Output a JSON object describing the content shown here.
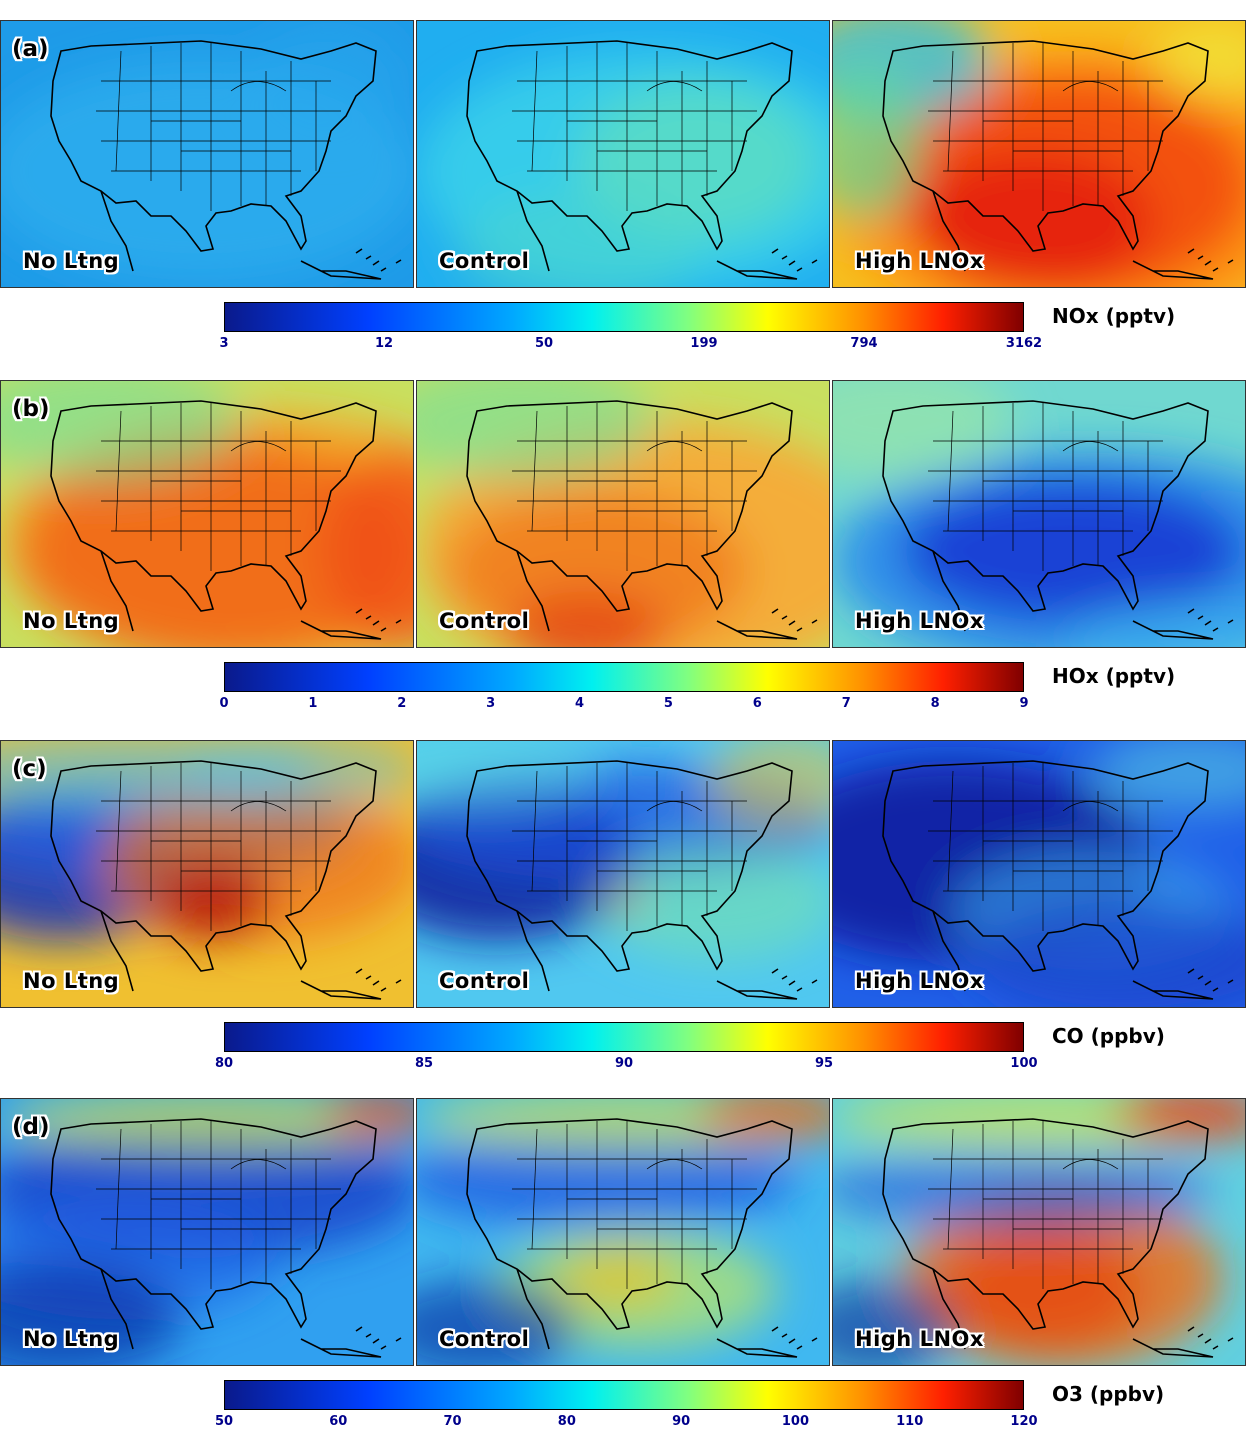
{
  "rows": [
    {
      "label": "(a)",
      "panels": [
        "No Ltng",
        "Control",
        "High LNOx"
      ],
      "colorbar": {
        "title": "NOx (pptv)",
        "ticks": [
          "3",
          "12",
          "50",
          "199",
          "794",
          "3162"
        ]
      }
    },
    {
      "label": "(b)",
      "panels": [
        "No Ltng",
        "Control",
        "High LNOx"
      ],
      "colorbar": {
        "title": "HOx (pptv)",
        "ticks": [
          "0",
          "1",
          "2",
          "3",
          "4",
          "5",
          "6",
          "7",
          "8",
          "9"
        ]
      }
    },
    {
      "label": "(c)",
      "panels": [
        "No Ltng",
        "Control",
        "High LNOx"
      ],
      "colorbar": {
        "title": "CO (ppbv)",
        "ticks": [
          "80",
          "85",
          "90",
          "95",
          "100"
        ]
      }
    },
    {
      "label": "(d)",
      "panels": [
        "No Ltng",
        "Control",
        "High LNOx"
      ],
      "colorbar": {
        "title": "O3 (ppbv)",
        "ticks": [
          "50",
          "60",
          "70",
          "80",
          "90",
          "100",
          "110",
          "120"
        ]
      }
    }
  ],
  "colors": {
    "dark_blue": "#0a1a8c",
    "blue": "#0040ff",
    "cyan": "#00d8ff",
    "green": "#80ff80",
    "yellow": "#ffff00",
    "orange": "#ff9000",
    "red": "#ff2000",
    "dark_red": "#800000"
  }
}
